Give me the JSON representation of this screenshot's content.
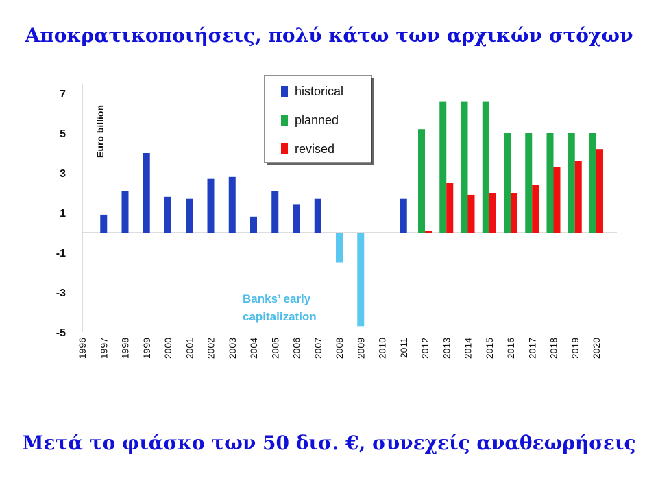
{
  "slide": {
    "title": "Αποκρατικοποιήσεις, πολύ κάτω των αρχικών στόχων",
    "footer": "Μετά το φιάσκο των 50 δισ. €, συνεχείς αναθεωρήσεις"
  },
  "chart_data": {
    "type": "bar",
    "ylabel": "Euro billion",
    "ylim": [
      -5,
      7.5
    ],
    "yticks": [
      7,
      5,
      3,
      1,
      -1,
      -3,
      -5
    ],
    "grid": false,
    "legend_position": "top-center",
    "categories": [
      "1996",
      "1997",
      "1998",
      "1999",
      "2000",
      "2001",
      "2002",
      "2003",
      "2004",
      "2005",
      "2006",
      "2007",
      "2008",
      "2009",
      "2010",
      "2011",
      "2012",
      "2013",
      "2014",
      "2015",
      "2016",
      "2017",
      "2018",
      "2019",
      "2020"
    ],
    "series": [
      {
        "name": "historical",
        "color": "#1f3fc0",
        "values": [
          null,
          0.9,
          2.1,
          4.0,
          1.8,
          1.7,
          2.7,
          2.8,
          0.8,
          2.1,
          1.4,
          1.7,
          null,
          null,
          null,
          1.7,
          null,
          null,
          null,
          null,
          null,
          null,
          null,
          null,
          null
        ]
      },
      {
        "name": "",
        "color": "#5bc8f0",
        "values": [
          null,
          null,
          null,
          null,
          null,
          null,
          null,
          null,
          null,
          null,
          null,
          null,
          -1.5,
          -4.7,
          null,
          null,
          null,
          null,
          null,
          null,
          null,
          null,
          null,
          null,
          null
        ]
      },
      {
        "name": "planned",
        "color": "#1faa4a",
        "values": [
          null,
          null,
          null,
          null,
          null,
          null,
          null,
          null,
          null,
          null,
          null,
          null,
          null,
          null,
          null,
          null,
          5.2,
          6.6,
          6.6,
          6.6,
          5.0,
          5.0,
          5.0,
          5.0,
          5.0
        ]
      },
      {
        "name": "revised",
        "color": "#f01010",
        "values": [
          null,
          null,
          null,
          null,
          null,
          null,
          null,
          null,
          null,
          null,
          null,
          null,
          null,
          null,
          null,
          null,
          0.1,
          2.5,
          1.9,
          2.0,
          2.0,
          2.4,
          3.3,
          3.6,
          4.2
        ]
      }
    ],
    "annotations": [
      {
        "text": "Banks’ early"
      },
      {
        "text": "capitalization"
      }
    ]
  }
}
